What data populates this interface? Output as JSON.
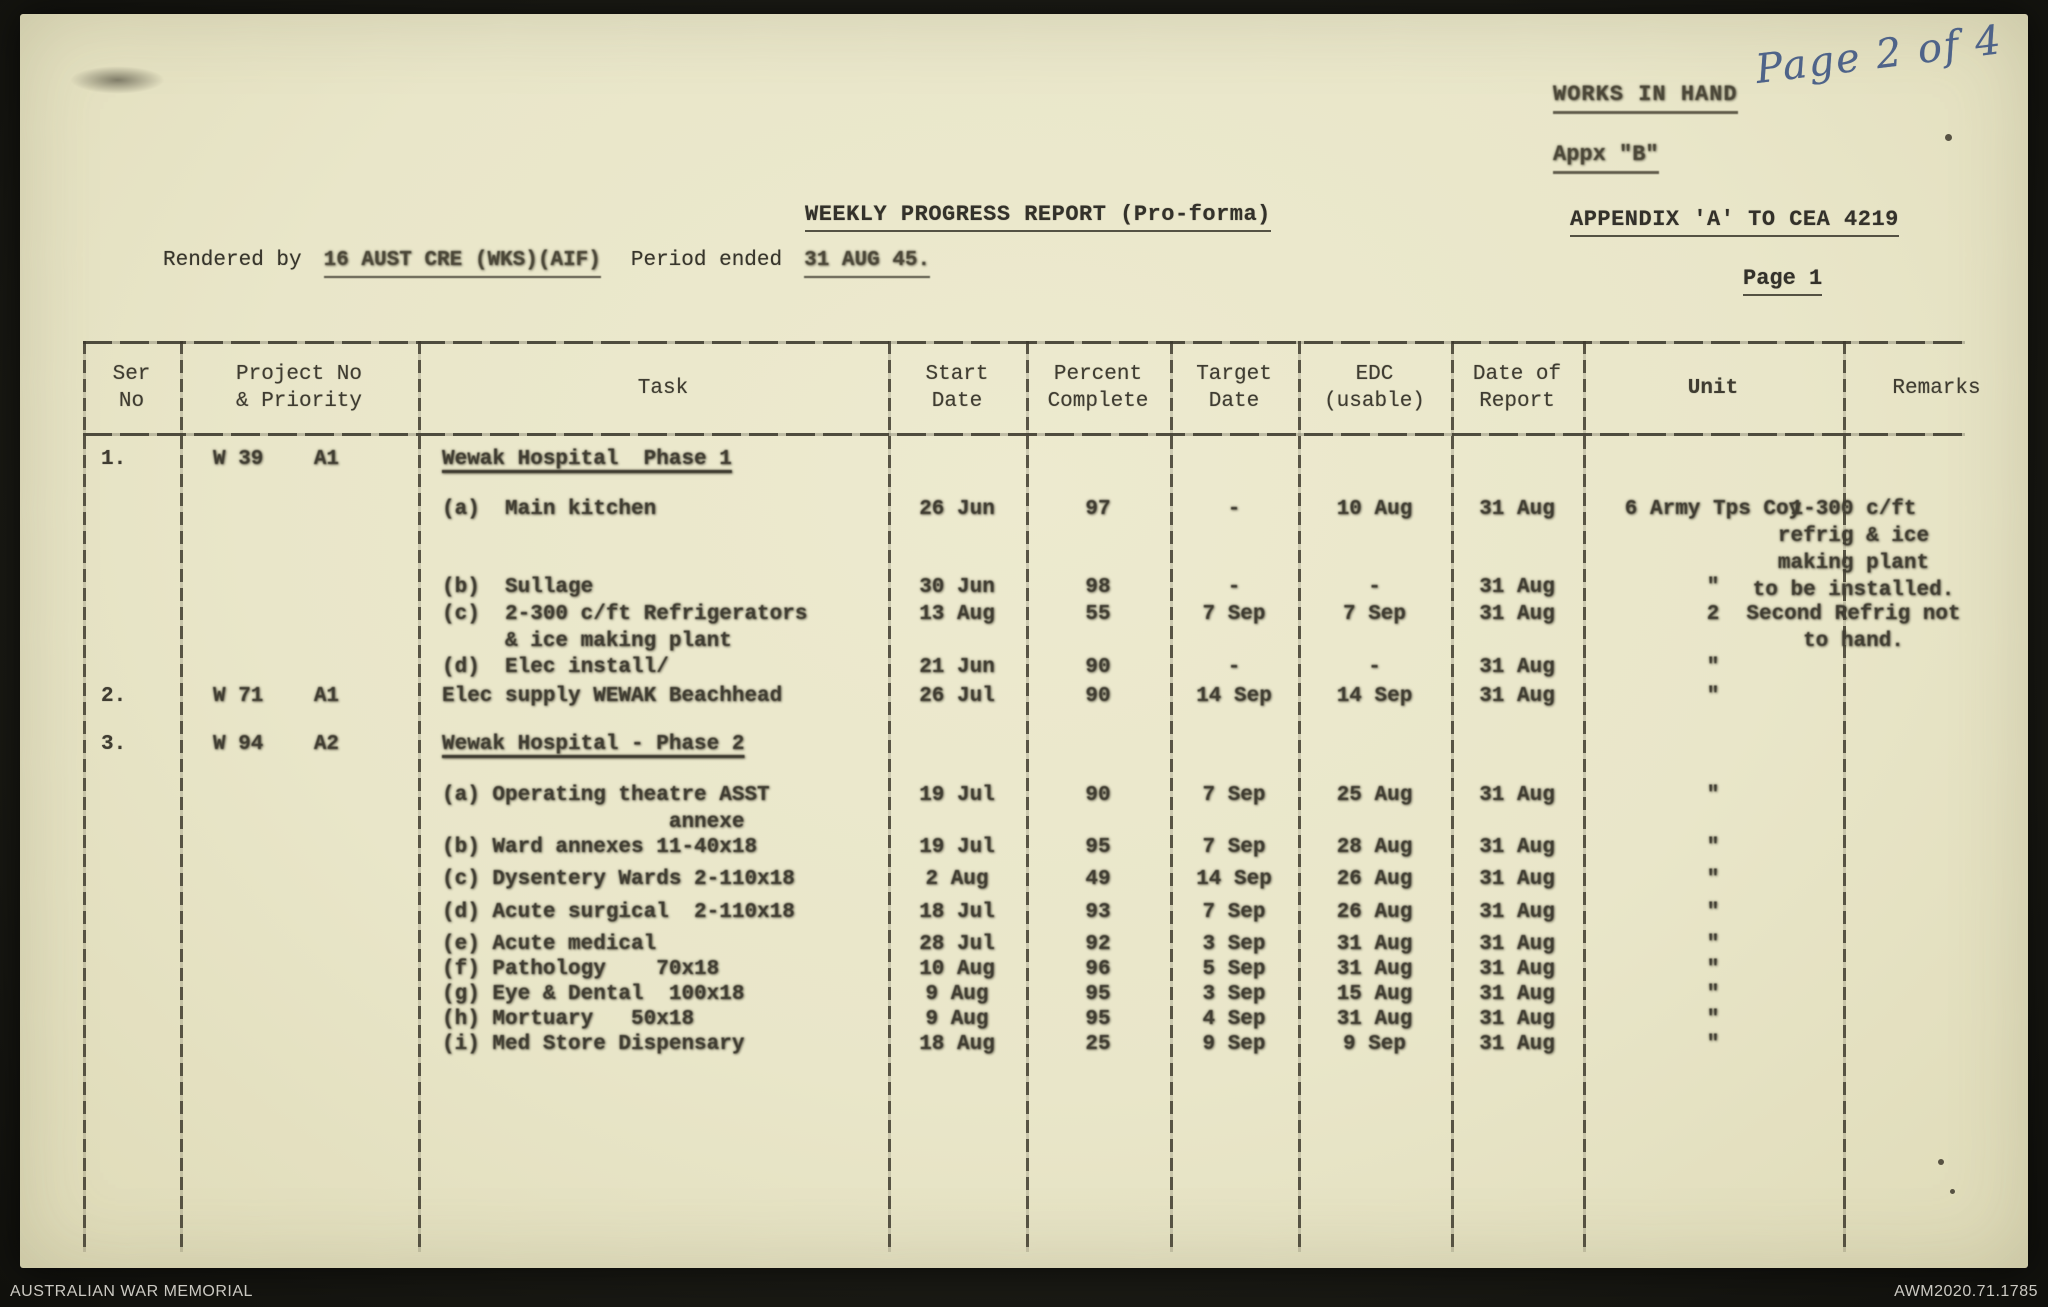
{
  "page": {
    "handwritten_note": "Page 2 of 4",
    "stamp_line1": "WORKS IN HAND",
    "stamp_line2": "Appx \"B\"",
    "title": "WEEKLY PROGRESS REPORT (Pro-forma)",
    "appendix": "APPENDIX 'A' TO CEA 4219",
    "page_label": "Page 1",
    "rendered_by_label": "Rendered by",
    "rendered_by_value": "16 AUST CRE (WKS)(AIF)",
    "period_label": "Period ended",
    "period_value": "31 AUG 45."
  },
  "table": {
    "headers": {
      "ser": "Ser\nNo",
      "project": "Project No\n& Priority",
      "task": "Task",
      "start": "Start\nDate",
      "pct": "Percent\nComplete",
      "target": "Target\nDate",
      "edc": "EDC\n(usable)",
      "report": "Date of\nReport",
      "unit": "Unit",
      "remarks": "Remarks"
    },
    "rows": [
      {
        "ser": "1.",
        "project": "W 39    A1",
        "task": "Wewak Hospital  Phase 1",
        "underline": true
      },
      {
        "task": "(a)  Main kitchen",
        "start": "26 Jun",
        "pct": "97",
        "target": "-",
        "edc": "10 Aug",
        "report": "31 Aug",
        "unit": "6 Army Tps Coy",
        "remarks": "1-300 c/ft\nrefrig & ice\nmaking plant\nto be installed."
      },
      {
        "task": "(b)  Sullage",
        "start": "30 Jun",
        "pct": "98",
        "target": "-",
        "edc": "-",
        "report": "31 Aug",
        "unit": "\""
      },
      {
        "task": "(c)  2-300 c/ft Refrigerators\n     & ice making plant",
        "start": "13 Aug",
        "pct": "55",
        "target": "7 Sep",
        "edc": "7 Sep",
        "report": "31 Aug",
        "unit": "2",
        "remarks": "Second Refrig not\nto hand."
      },
      {
        "task": "(d)  Elec install/",
        "start": "21 Jun",
        "pct": "90",
        "target": "-",
        "edc": "-",
        "report": "31 Aug",
        "unit": "\""
      },
      {
        "ser": "2.",
        "project": "W 71    A1",
        "task": "Elec supply WEWAK Beachhead",
        "start": "26 Jul",
        "pct": "90",
        "target": "14 Sep",
        "edc": "14 Sep",
        "report": "31 Aug",
        "unit": "\""
      },
      {
        "ser": "3.",
        "project": "W 94    A2",
        "task": "Wewak Hospital - Phase 2",
        "underline": true
      },
      {
        "task": "(a) Operating theatre ASST\n                  annexe",
        "start": "19 Jul",
        "pct": "90",
        "target": "7 Sep",
        "edc": "25 Aug",
        "report": "31 Aug",
        "unit": "\""
      },
      {
        "task": "(b) Ward annexes 11-40x18",
        "start": "19 Jul",
        "pct": "95",
        "target": "7 Sep",
        "edc": "28 Aug",
        "report": "31 Aug",
        "unit": "\""
      },
      {
        "task": "(c) Dysentery Wards 2-110x18",
        "start": "2 Aug",
        "pct": "49",
        "target": "14 Sep",
        "edc": "26 Aug",
        "report": "31 Aug",
        "unit": "\""
      },
      {
        "task": "(d) Acute surgical  2-110x18",
        "start": "18 Jul",
        "pct": "93",
        "target": "7 Sep",
        "edc": "26 Aug",
        "report": "31 Aug",
        "unit": "\""
      },
      {
        "task": "(e) Acute medical",
        "start": "28 Jul",
        "pct": "92",
        "target": "3 Sep",
        "edc": "31 Aug",
        "report": "31 Aug",
        "unit": "\""
      },
      {
        "task": "(f) Pathology    70x18",
        "start": "10 Aug",
        "pct": "96",
        "target": "5 Sep",
        "edc": "31 Aug",
        "report": "31 Aug",
        "unit": "\""
      },
      {
        "task": "(g) Eye & Dental  100x18",
        "start": "9 Aug",
        "pct": "95",
        "target": "3 Sep",
        "edc": "15 Aug",
        "report": "31 Aug",
        "unit": "\""
      },
      {
        "task": "(h) Mortuary   50x18",
        "start": "9 Aug",
        "pct": "95",
        "target": "4 Sep",
        "edc": "31 Aug",
        "report": "31 Aug",
        "unit": "\""
      },
      {
        "task": "(i) Med Store Dispensary",
        "start": "18 Aug",
        "pct": "25",
        "target": "9 Sep",
        "edc": "9 Sep",
        "report": "31 Aug",
        "unit": "\""
      }
    ]
  },
  "footer": {
    "left": "AUSTRALIAN WAR MEMORIAL",
    "right": "AWM2020.71.1785"
  }
}
